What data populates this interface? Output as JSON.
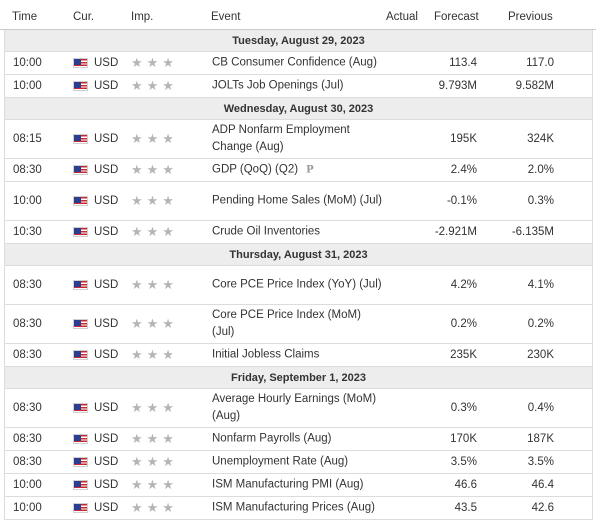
{
  "header": {
    "time": "Time",
    "currency": "Cur.",
    "importance": "Imp.",
    "event": "Event",
    "actual": "Actual",
    "forecast": "Forecast",
    "previous": "Previous"
  },
  "icons": {
    "flag": "us-flag-icon",
    "importance": "star-icon",
    "preliminary": "preliminary-p-icon"
  },
  "colors": {
    "day_header_bg": "#ededed",
    "star_color": "#b5b5b5",
    "border": "#dcdcdc"
  },
  "days": [
    {
      "label": "Tuesday, August 29, 2023",
      "events": [
        {
          "time": "10:00",
          "currency": "USD",
          "stars": "★★★",
          "event": "CB Consumer Confidence (Aug)",
          "actual": "",
          "forecast": "113.4",
          "previous": "117.0",
          "tall": false
        },
        {
          "time": "10:00",
          "currency": "USD",
          "stars": "★★★",
          "event": "JOLTs Job Openings (Jul)",
          "actual": "",
          "forecast": "9.793M",
          "previous": "9.582M",
          "tall": false
        }
      ]
    },
    {
      "label": "Wednesday, August 30, 2023",
      "events": [
        {
          "time": "08:15",
          "currency": "USD",
          "stars": "★★★",
          "event": "ADP Nonfarm Employment Change (Aug)",
          "actual": "",
          "forecast": "195K",
          "previous": "324K",
          "tall": true
        },
        {
          "time": "08:30",
          "currency": "USD",
          "stars": "★★★",
          "event": "GDP (QoQ) (Q2)",
          "prelim": "P",
          "actual": "",
          "forecast": "2.4%",
          "previous": "2.0%",
          "tall": false
        },
        {
          "time": "10:00",
          "currency": "USD",
          "stars": "★★★",
          "event": "Pending Home Sales (MoM) (Jul)",
          "actual": "",
          "forecast": "-0.1%",
          "previous": "0.3%",
          "tall": true
        },
        {
          "time": "10:30",
          "currency": "USD",
          "stars": "★★★",
          "event": "Crude Oil Inventories",
          "actual": "",
          "forecast": "-2.921M",
          "previous": "-6.135M",
          "tall": false
        }
      ]
    },
    {
      "label": "Thursday, August 31, 2023",
      "events": [
        {
          "time": "08:30",
          "currency": "USD",
          "stars": "★★★",
          "event": "Core PCE Price Index (YoY) (Jul)",
          "actual": "",
          "forecast": "4.2%",
          "previous": "4.1%",
          "tall": true
        },
        {
          "time": "08:30",
          "currency": "USD",
          "stars": "★★★",
          "event": "Core PCE Price Index (MoM) (Jul)",
          "actual": "",
          "forecast": "0.2%",
          "previous": "0.2%",
          "tall": true
        },
        {
          "time": "08:30",
          "currency": "USD",
          "stars": "★★★",
          "event": "Initial Jobless Claims",
          "actual": "",
          "forecast": "235K",
          "previous": "230K",
          "tall": false
        }
      ]
    },
    {
      "label": "Friday, September 1, 2023",
      "events": [
        {
          "time": "08:30",
          "currency": "USD",
          "stars": "★★★",
          "event": "Average Hourly Earnings (MoM) (Aug)",
          "actual": "",
          "forecast": "0.3%",
          "previous": "0.4%",
          "tall": true
        },
        {
          "time": "08:30",
          "currency": "USD",
          "stars": "★★★",
          "event": "Nonfarm Payrolls (Aug)",
          "actual": "",
          "forecast": "170K",
          "previous": "187K",
          "tall": false
        },
        {
          "time": "08:30",
          "currency": "USD",
          "stars": "★★★",
          "event": "Unemployment Rate (Aug)",
          "actual": "",
          "forecast": "3.5%",
          "previous": "3.5%",
          "tall": false
        },
        {
          "time": "10:00",
          "currency": "USD",
          "stars": "★★★",
          "event": "ISM Manufacturing PMI (Aug)",
          "actual": "",
          "forecast": "46.6",
          "previous": "46.4",
          "tall": false
        },
        {
          "time": "10:00",
          "currency": "USD",
          "stars": "★★★",
          "event": "ISM Manufacturing Prices (Aug)",
          "actual": "",
          "forecast": "43.5",
          "previous": "42.6",
          "tall": false
        }
      ]
    }
  ]
}
